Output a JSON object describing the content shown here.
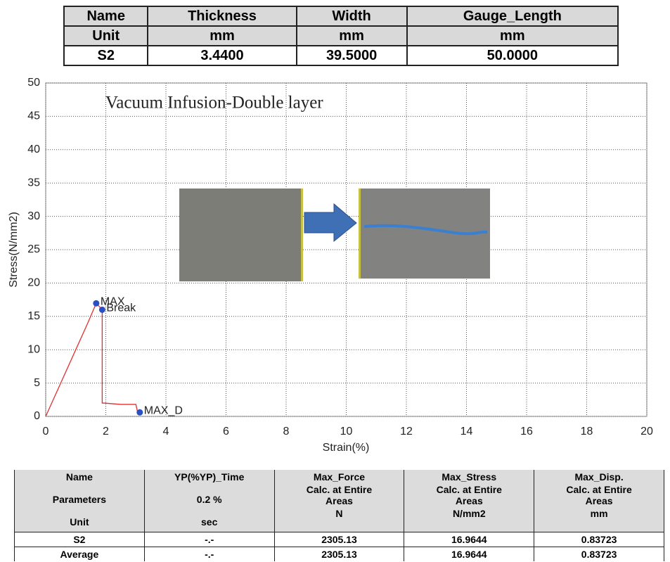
{
  "top_table": {
    "rows": [
      [
        "Name",
        "Thickness",
        "Width",
        "Gauge_Length"
      ],
      [
        "Unit",
        "mm",
        "mm",
        "mm"
      ],
      [
        "S2",
        "3.4400",
        "39.5000",
        "50.0000"
      ]
    ]
  },
  "chart_data": {
    "type": "line",
    "title": "Vacuum Infusion-Double layer",
    "x_label": "Strain(%)",
    "y_label": "Stress(N/mm2)",
    "xlim": [
      0,
      20
    ],
    "ylim": [
      0,
      50
    ],
    "xticks": [
      0,
      2,
      4,
      6,
      8,
      10,
      12,
      14,
      16,
      18,
      20
    ],
    "yticks": [
      0,
      5,
      10,
      15,
      20,
      25,
      30,
      35,
      40,
      45,
      50
    ],
    "grid": true,
    "series": [
      {
        "color": "#e03030",
        "x": [
          0,
          0.5,
          1.0,
          1.4,
          1.68,
          1.88,
          1.88,
          1.95,
          2.5,
          3.0,
          3.05,
          3.13
        ],
        "values": [
          0,
          5,
          10,
          14,
          16.96,
          16.0,
          2.0,
          2.0,
          1.8,
          1.8,
          0.8,
          0.6
        ]
      }
    ],
    "points": [
      {
        "label": "MAX",
        "x": 1.68,
        "y": 16.96,
        "color": "#2a4fc0"
      },
      {
        "label": "Break",
        "x": 1.88,
        "y": 16.0,
        "color": "#2a4fc0"
      },
      {
        "label": "MAX_D",
        "x": 3.13,
        "y": 0.6,
        "color": "#2a4fc0"
      }
    ]
  },
  "bottom_table": {
    "header": [
      [
        "Name",
        "Parameters",
        "Unit"
      ],
      [
        "YP(%YP)_Time",
        "0.2 %",
        "sec"
      ],
      [
        "Max_Force",
        "Calc. at Entire Areas",
        "N"
      ],
      [
        "Max_Stress",
        "Calc. at Entire Areas",
        "N/mm2"
      ],
      [
        "Max_Disp.",
        "Calc. at Entire Areas",
        "mm"
      ]
    ],
    "rows": [
      [
        "S2",
        "-.-",
        "2305.13",
        "16.9644",
        "0.83723"
      ],
      [
        "Average",
        "-.-",
        "2305.13",
        "16.9644",
        "0.83723"
      ]
    ]
  }
}
